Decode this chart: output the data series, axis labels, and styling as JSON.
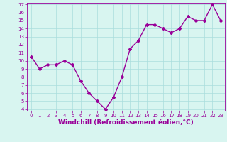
{
  "x": [
    0,
    1,
    2,
    3,
    4,
    5,
    6,
    7,
    8,
    9,
    10,
    11,
    12,
    13,
    14,
    15,
    16,
    17,
    18,
    19,
    20,
    21,
    22,
    23
  ],
  "y": [
    10.5,
    9.0,
    9.5,
    9.5,
    10.0,
    9.5,
    7.5,
    6.0,
    5.0,
    4.0,
    5.5,
    8.0,
    11.5,
    12.5,
    14.5,
    14.5,
    14.0,
    13.5,
    14.0,
    15.5,
    15.0,
    15.0,
    17.0,
    15.0
  ],
  "line_color": "#990099",
  "marker": "D",
  "marker_size": 2,
  "bg_color": "#d8f5f0",
  "grid_color": "#aadddd",
  "xlabel": "Windchill (Refroidissement éolien,°C)",
  "xlabel_color": "#990099",
  "ylim": [
    4,
    17
  ],
  "xlim": [
    -0.5,
    23.5
  ],
  "yticks": [
    4,
    5,
    6,
    7,
    8,
    9,
    10,
    11,
    12,
    13,
    14,
    15,
    16,
    17
  ],
  "xticks": [
    0,
    1,
    2,
    3,
    4,
    5,
    6,
    7,
    8,
    9,
    10,
    11,
    12,
    13,
    14,
    15,
    16,
    17,
    18,
    19,
    20,
    21,
    22,
    23
  ],
  "tick_color": "#990099",
  "tick_fontsize": 5,
  "xlabel_fontsize": 6.5,
  "spine_color": "#990099",
  "linewidth": 1.0
}
